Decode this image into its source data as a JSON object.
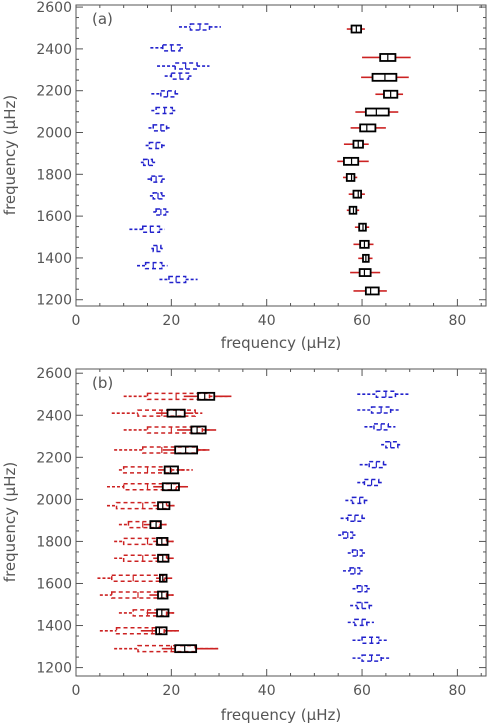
{
  "chart_data": [
    {
      "type": "box",
      "panel_label": "(a)",
      "xlabel": "frequency (μHz)",
      "ylabel": "frequency (μHz)",
      "xlim": [
        0,
        86
      ],
      "ylim": [
        1170,
        2610
      ],
      "xticks": [
        0,
        20,
        40,
        60,
        80
      ],
      "yticks": [
        1200,
        1400,
        1600,
        1800,
        2000,
        2200,
        2400,
        2600
      ],
      "series": [
        {
          "color": "#2222cc",
          "style": "dashed",
          "points": [
            {
              "y": 1297,
              "median": 21.0,
              "q1": 19.5,
              "q3": 23.0,
              "lo": 17.5,
              "hi": 25.5
            },
            {
              "y": 1363,
              "median": 16.2,
              "q1": 14.6,
              "q3": 18.0,
              "lo": 12.8,
              "hi": 19.2
            },
            {
              "y": 1445,
              "median": 17.0,
              "q1": 16.2,
              "q3": 17.8,
              "lo": 15.8,
              "hi": 18.2
            },
            {
              "y": 1537,
              "median": 15.6,
              "q1": 14.0,
              "q3": 17.5,
              "lo": 11.2,
              "hi": 18.6
            },
            {
              "y": 1620,
              "median": 17.8,
              "q1": 16.8,
              "q3": 18.8,
              "lo": 16.2,
              "hi": 19.4
            },
            {
              "y": 1697,
              "median": 17.2,
              "q1": 16.2,
              "q3": 18.0,
              "lo": 15.5,
              "hi": 19.0
            },
            {
              "y": 1777,
              "median": 16.8,
              "q1": 15.8,
              "q3": 18.0,
              "lo": 15.0,
              "hi": 18.8
            },
            {
              "y": 1857,
              "median": 15.2,
              "q1": 14.2,
              "q3": 16.0,
              "lo": 13.6,
              "hi": 16.6
            },
            {
              "y": 1938,
              "median": 16.8,
              "q1": 15.4,
              "q3": 18.0,
              "lo": 14.6,
              "hi": 19.0
            },
            {
              "y": 2022,
              "median": 17.8,
              "q1": 16.2,
              "q3": 19.0,
              "lo": 15.2,
              "hi": 19.8
            },
            {
              "y": 2105,
              "median": 18.6,
              "q1": 16.8,
              "q3": 20.2,
              "lo": 15.8,
              "hi": 21.2
            },
            {
              "y": 2185,
              "median": 19.2,
              "q1": 17.8,
              "q3": 20.8,
              "lo": 15.8,
              "hi": 21.8
            },
            {
              "y": 2270,
              "median": 21.8,
              "q1": 20.0,
              "q3": 23.6,
              "lo": 18.6,
              "hi": 24.6
            },
            {
              "y": 2318,
              "median": 23.0,
              "q1": 20.8,
              "q3": 25.4,
              "lo": 17.0,
              "hi": 28.0
            },
            {
              "y": 2405,
              "median": 20.0,
              "q1": 18.2,
              "q3": 21.8,
              "lo": 15.6,
              "hi": 22.8
            },
            {
              "y": 2505,
              "median": 26.0,
              "q1": 24.0,
              "q3": 28.0,
              "lo": 21.6,
              "hi": 30.4
            }
          ]
        },
        {
          "color": "#000000",
          "whisker_color": "#cc2222",
          "style": "solid",
          "points": [
            {
              "y": 1242,
              "median": 61.8,
              "q1": 60.8,
              "q3": 63.5,
              "lo": 58.2,
              "hi": 65.2
            },
            {
              "y": 1330,
              "median": 60.5,
              "q1": 59.5,
              "q3": 61.8,
              "lo": 57.5,
              "hi": 63.8
            },
            {
              "y": 1398,
              "median": 60.8,
              "q1": 60.2,
              "q3": 61.4,
              "lo": 59.2,
              "hi": 62.2
            },
            {
              "y": 1465,
              "median": 60.5,
              "q1": 59.6,
              "q3": 61.4,
              "lo": 58.2,
              "hi": 62.4
            },
            {
              "y": 1547,
              "median": 60.2,
              "q1": 59.4,
              "q3": 60.8,
              "lo": 58.5,
              "hi": 61.5
            },
            {
              "y": 1628,
              "median": 58.2,
              "q1": 57.4,
              "q3": 58.8,
              "lo": 56.8,
              "hi": 59.4
            },
            {
              "y": 1705,
              "median": 59.2,
              "q1": 58.2,
              "q3": 59.8,
              "lo": 57.2,
              "hi": 60.6
            },
            {
              "y": 1785,
              "median": 57.8,
              "q1": 56.8,
              "q3": 58.4,
              "lo": 56.0,
              "hi": 59.0
            },
            {
              "y": 1862,
              "median": 57.8,
              "q1": 56.2,
              "q3": 59.2,
              "lo": 54.8,
              "hi": 61.4
            },
            {
              "y": 1944,
              "median": 59.2,
              "q1": 58.2,
              "q3": 60.2,
              "lo": 56.2,
              "hi": 61.4
            },
            {
              "y": 2022,
              "median": 61.0,
              "q1": 59.6,
              "q3": 62.8,
              "lo": 57.6,
              "hi": 65.0
            },
            {
              "y": 2098,
              "median": 63.0,
              "q1": 60.8,
              "q3": 65.6,
              "lo": 58.6,
              "hi": 67.6
            },
            {
              "y": 2183,
              "median": 66.0,
              "q1": 64.6,
              "q3": 67.4,
              "lo": 62.8,
              "hi": 68.6
            },
            {
              "y": 2264,
              "median": 64.8,
              "q1": 62.2,
              "q3": 67.2,
              "lo": 59.8,
              "hi": 69.8
            },
            {
              "y": 2359,
              "median": 65.4,
              "q1": 63.8,
              "q3": 67.0,
              "lo": 60.0,
              "hi": 70.2
            },
            {
              "y": 2495,
              "median": 58.8,
              "q1": 57.8,
              "q3": 59.8,
              "lo": 56.8,
              "hi": 60.6
            }
          ]
        }
      ]
    },
    {
      "type": "box",
      "panel_label": "(b)",
      "xlabel": "frequency (μHz)",
      "ylabel": "frequency (μHz)",
      "xlim": [
        0,
        86
      ],
      "ylim": [
        1160,
        2620
      ],
      "xticks": [
        0,
        20,
        40,
        60,
        80
      ],
      "yticks": [
        1200,
        1400,
        1600,
        1800,
        2000,
        2200,
        2400,
        2600
      ],
      "series": [
        {
          "color": "#cc2222",
          "style": "dashed",
          "points": [
            {
              "y": 1290,
              "median": 20.0,
              "q1": 13.0,
              "q3": 25.0,
              "lo": 8.0,
              "hi": 30.0
            },
            {
              "y": 1375,
              "median": 16.0,
              "q1": 8.5,
              "q3": 18.5,
              "lo": 5.0,
              "hi": 21.0
            },
            {
              "y": 1460,
              "median": 15.0,
              "q1": 12.0,
              "q3": 19.0,
              "lo": 9.0,
              "hi": 20.5
            },
            {
              "y": 1545,
              "median": 13.0,
              "q1": 7.5,
              "q3": 19.0,
              "lo": 5.0,
              "hi": 20.5
            },
            {
              "y": 1625,
              "median": 12.0,
              "q1": 7.5,
              "q3": 18.5,
              "lo": 4.5,
              "hi": 20.5
            },
            {
              "y": 1720,
              "median": 14.0,
              "q1": 10.0,
              "q3": 19.0,
              "lo": 8.0,
              "hi": 20.5
            },
            {
              "y": 1800,
              "median": 15.0,
              "q1": 10.0,
              "q3": 19.0,
              "lo": 8.0,
              "hi": 20.5
            },
            {
              "y": 1880,
              "median": 14.0,
              "q1": 11.0,
              "q3": 17.5,
              "lo": 9.0,
              "hi": 19.0
            },
            {
              "y": 1970,
              "median": 14.0,
              "q1": 8.5,
              "q3": 19.0,
              "lo": 6.5,
              "hi": 21.0
            },
            {
              "y": 2060,
              "median": 15.0,
              "q1": 10.0,
              "q3": 21.0,
              "lo": 6.5,
              "hi": 23.5
            },
            {
              "y": 2140,
              "median": 15.0,
              "q1": 10.0,
              "q3": 20.0,
              "lo": 9.0,
              "hi": 24.5
            },
            {
              "y": 2235,
              "median": 18.0,
              "q1": 14.0,
              "q3": 25.5,
              "lo": 8.0,
              "hi": 28.0
            },
            {
              "y": 2330,
              "median": 20.0,
              "q1": 15.0,
              "q3": 26.5,
              "lo": 10.0,
              "hi": 28.0
            },
            {
              "y": 2410,
              "median": 18.0,
              "q1": 13.0,
              "q3": 25.0,
              "lo": 7.5,
              "hi": 26.5
            },
            {
              "y": 2490,
              "median": 21.0,
              "q1": 15.0,
              "q3": 28.0,
              "lo": 10.0,
              "hi": 32.0
            }
          ]
        },
        {
          "color": "#000000",
          "whisker_color": "#cc2222",
          "style": "solid",
          "points": [
            {
              "y": 1290,
              "median": 22.8,
              "q1": 20.8,
              "q3": 25.2,
              "lo": 18.0,
              "hi": 29.8
            },
            {
              "y": 1375,
              "median": 17.5,
              "q1": 16.8,
              "q3": 19.0,
              "lo": 13.6,
              "hi": 21.6
            },
            {
              "y": 1460,
              "median": 18.0,
              "q1": 17.0,
              "q3": 19.4,
              "lo": 14.8,
              "hi": 20.6
            },
            {
              "y": 1545,
              "median": 18.0,
              "q1": 17.2,
              "q3": 19.2,
              "lo": 15.4,
              "hi": 20.4
            },
            {
              "y": 1625,
              "median": 18.2,
              "q1": 17.6,
              "q3": 19.0,
              "lo": 16.8,
              "hi": 19.6
            },
            {
              "y": 1720,
              "median": 18.2,
              "q1": 17.2,
              "q3": 19.4,
              "lo": 16.2,
              "hi": 20.4
            },
            {
              "y": 1800,
              "median": 18.0,
              "q1": 17.0,
              "q3": 19.2,
              "lo": 16.2,
              "hi": 20.4
            },
            {
              "y": 1880,
              "median": 16.8,
              "q1": 15.6,
              "q3": 17.8,
              "lo": 14.2,
              "hi": 19.0
            },
            {
              "y": 1970,
              "median": 18.2,
              "q1": 17.2,
              "q3": 19.6,
              "lo": 16.2,
              "hi": 20.6
            },
            {
              "y": 2060,
              "median": 20.0,
              "q1": 18.2,
              "q3": 21.6,
              "lo": 16.2,
              "hi": 23.2
            },
            {
              "y": 2140,
              "median": 19.8,
              "q1": 18.6,
              "q3": 21.4,
              "lo": 17.2,
              "hi": 22.8
            },
            {
              "y": 2235,
              "median": 23.0,
              "q1": 20.8,
              "q3": 25.4,
              "lo": 18.2,
              "hi": 27.6
            },
            {
              "y": 2330,
              "median": 25.4,
              "q1": 24.2,
              "q3": 27.2,
              "lo": 21.2,
              "hi": 29.4
            },
            {
              "y": 2410,
              "median": 21.0,
              "q1": 19.2,
              "q3": 22.8,
              "lo": 16.8,
              "hi": 24.6
            },
            {
              "y": 2490,
              "median": 27.0,
              "q1": 25.6,
              "q3": 29.0,
              "lo": 22.6,
              "hi": 32.6
            }
          ]
        },
        {
          "color": "#2222cc",
          "style": "dashed",
          "points": [
            {
              "y": 1245,
              "median": 62.0,
              "q1": 60.0,
              "q3": 64.0,
              "lo": 58.0,
              "hi": 66.0
            },
            {
              "y": 1330,
              "median": 62.0,
              "q1": 60.0,
              "q3": 63.5,
              "lo": 58.0,
              "hi": 65.5
            },
            {
              "y": 1415,
              "median": 60.0,
              "q1": 58.5,
              "q3": 61.0,
              "lo": 57.0,
              "hi": 62.5
            },
            {
              "y": 1495,
              "median": 60.0,
              "q1": 59.0,
              "q3": 61.5,
              "lo": 57.5,
              "hi": 62.5
            },
            {
              "y": 1575,
              "median": 60.0,
              "q1": 59.0,
              "q3": 61.0,
              "lo": 58.0,
              "hi": 62.0
            },
            {
              "y": 1660,
              "median": 58.5,
              "q1": 57.5,
              "q3": 59.5,
              "lo": 56.0,
              "hi": 60.5
            },
            {
              "y": 1745,
              "median": 59.0,
              "q1": 58.0,
              "q3": 60.0,
              "lo": 57.0,
              "hi": 61.0
            },
            {
              "y": 1830,
              "median": 57.0,
              "q1": 56.0,
              "q3": 58.0,
              "lo": 55.0,
              "hi": 59.0
            },
            {
              "y": 1910,
              "median": 58.5,
              "q1": 57.0,
              "q3": 60.0,
              "lo": 55.5,
              "hi": 61.0
            },
            {
              "y": 1995,
              "median": 59.5,
              "q1": 58.0,
              "q3": 60.5,
              "lo": 56.5,
              "hi": 61.5
            },
            {
              "y": 2080,
              "median": 62.0,
              "q1": 60.5,
              "q3": 63.5,
              "lo": 59.0,
              "hi": 64.5
            },
            {
              "y": 2165,
              "median": 63.0,
              "q1": 61.5,
              "q3": 64.5,
              "lo": 59.5,
              "hi": 65.5
            },
            {
              "y": 2260,
              "median": 66.0,
              "q1": 65.0,
              "q3": 67.5,
              "lo": 64.0,
              "hi": 68.0
            },
            {
              "y": 2345,
              "median": 64.0,
              "q1": 62.5,
              "q3": 65.5,
              "lo": 60.5,
              "hi": 67.0
            },
            {
              "y": 2425,
              "median": 64.0,
              "q1": 62.0,
              "q3": 66.0,
              "lo": 59.0,
              "hi": 68.0
            },
            {
              "y": 2500,
              "median": 65.0,
              "q1": 63.0,
              "q3": 67.0,
              "lo": 59.0,
              "hi": 70.0
            }
          ]
        }
      ]
    }
  ]
}
